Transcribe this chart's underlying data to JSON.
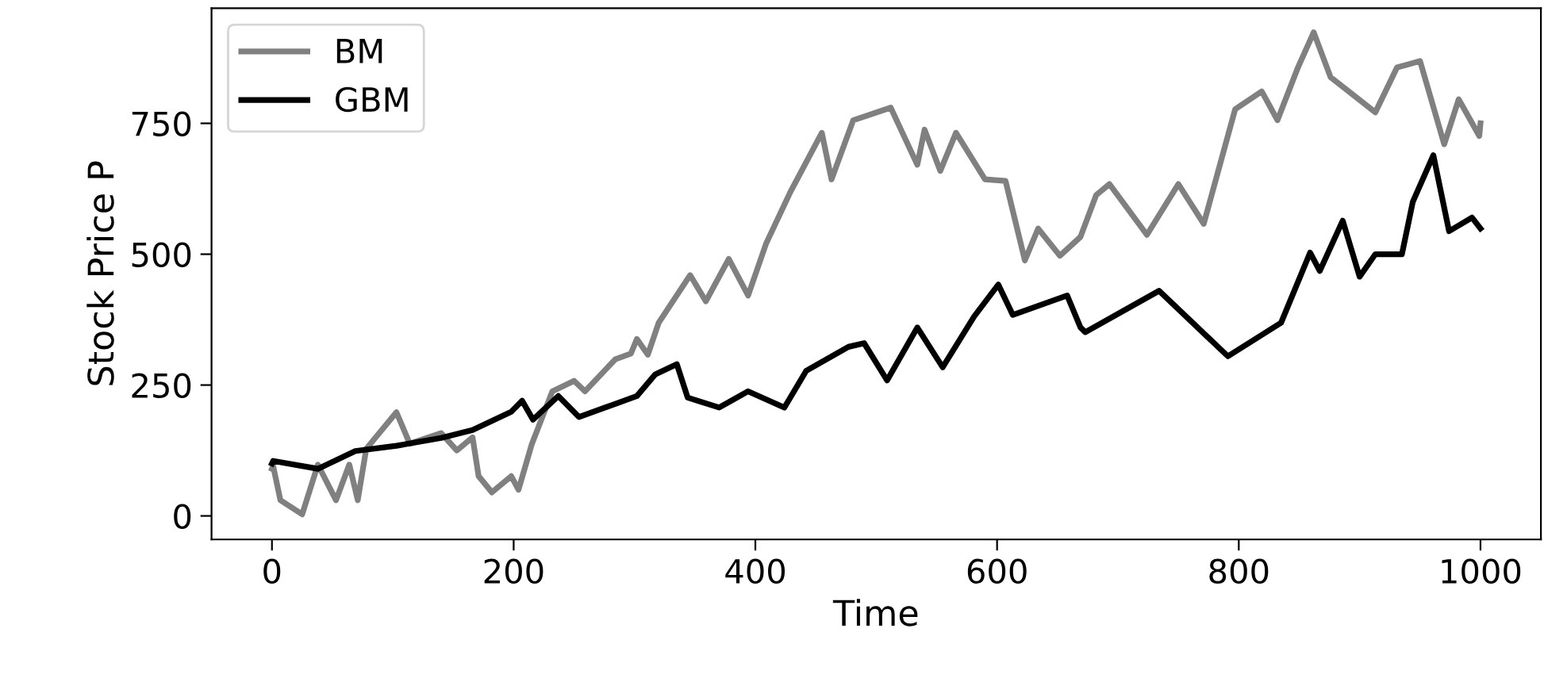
{
  "chart_data": {
    "type": "line",
    "xlabel": "Time",
    "ylabel": "Stock Price P",
    "xlim": [
      -50,
      1050
    ],
    "ylim": [
      -45,
      970
    ],
    "xticks": [
      0,
      200,
      400,
      600,
      800,
      1000
    ],
    "yticks": [
      0,
      250,
      500,
      750
    ],
    "grid": false,
    "legend": "top left",
    "marker": "none",
    "line_style": "solid",
    "series": [
      {
        "name": "BM",
        "color": "#808080",
        "x": [
          0,
          1,
          7,
          25,
          38,
          53,
          64,
          71,
          78,
          103,
          114,
          140,
          153,
          166,
          171,
          182,
          198,
          204,
          215,
          232,
          250,
          259,
          284,
          297,
          302,
          311,
          320,
          346,
          359,
          378,
          394,
          409,
          429,
          455,
          463,
          481,
          512,
          534,
          540,
          553,
          566,
          590,
          607,
          623,
          634,
          652,
          669,
          682,
          693,
          724,
          750,
          771,
          797,
          819,
          832,
          849,
          862,
          876,
          913,
          931,
          950,
          970,
          982,
          999,
          1000
        ],
        "values": [
          90,
          95,
          30,
          3,
          98,
          30,
          98,
          30,
          128,
          198,
          138,
          158,
          125,
          150,
          76,
          45,
          76,
          50,
          137,
          238,
          258,
          238,
          299,
          310,
          338,
          308,
          369,
          460,
          410,
          491,
          421,
          521,
          619,
          732,
          643,
          756,
          780,
          671,
          738,
          659,
          732,
          643,
          640,
          488,
          549,
          497,
          533,
          613,
          634,
          537,
          634,
          558,
          777,
          811,
          756,
          857,
          924,
          838,
          771,
          857,
          869,
          710,
          796,
          726,
          750
        ]
      },
      {
        "name": "GBM",
        "color": "#000000",
        "x": [
          0,
          1,
          38,
          69,
          103,
          140,
          166,
          198,
          207,
          216,
          237,
          254,
          284,
          302,
          317,
          335,
          344,
          370,
          394,
          424,
          442,
          477,
          490,
          509,
          534,
          555,
          581,
          601,
          613,
          658,
          669,
          673,
          734,
          791,
          835,
          859,
          867,
          886,
          900,
          913,
          935,
          944,
          961,
          974,
          993,
          1000
        ],
        "values": [
          100,
          105,
          90,
          124,
          134,
          149,
          164,
          199,
          220,
          184,
          229,
          189,
          214,
          229,
          270,
          290,
          226,
          207,
          238,
          207,
          277,
          323,
          330,
          259,
          360,
          284,
          381,
          442,
          384,
          421,
          360,
          351,
          430,
          305,
          369,
          503,
          468,
          564,
          457,
          500,
          500,
          600,
          689,
          544,
          570,
          549
        ]
      }
    ]
  }
}
